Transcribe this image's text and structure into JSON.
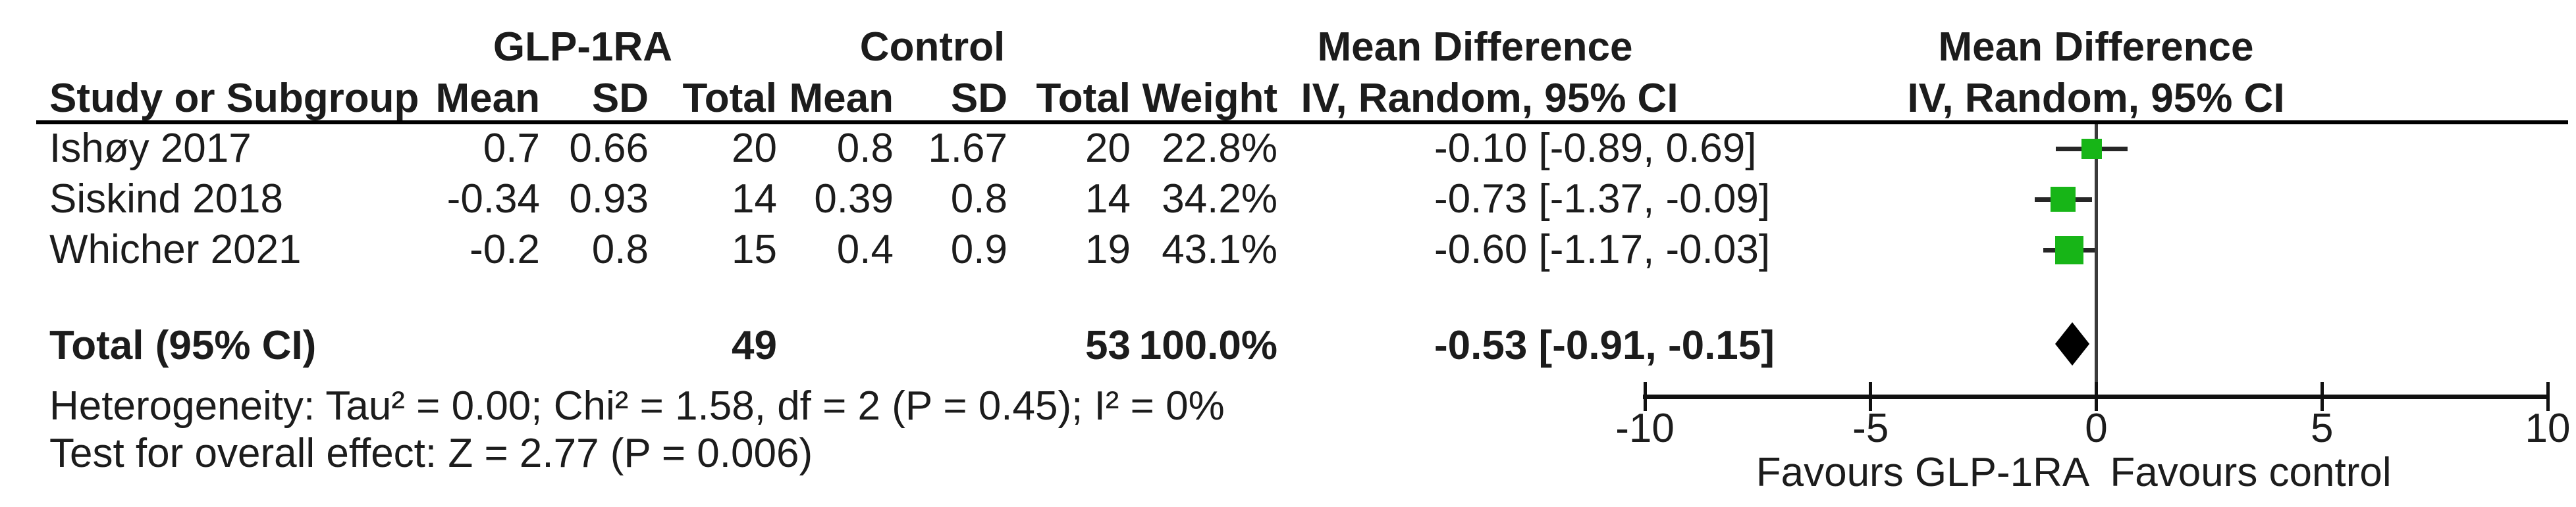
{
  "table": {
    "group_headers": {
      "treatment": "GLP-1RA",
      "control": "Control",
      "effect_stats": "Mean Difference",
      "effect_plot": "Mean Difference"
    },
    "column_headers": {
      "study": "Study or Subgroup",
      "t_mean": "Mean",
      "t_sd": "SD",
      "t_total": "Total",
      "c_mean": "Mean",
      "c_sd": "SD",
      "c_total": "Total",
      "weight": "Weight",
      "effect_stats_sub": "IV, Random, 95% CI",
      "effect_plot_sub": "IV, Random, 95% CI"
    },
    "rows": [
      {
        "study": "Ishøy 2017",
        "t_mean": "0.7",
        "t_sd": "0.66",
        "t_total": "20",
        "c_mean": "0.8",
        "c_sd": "1.67",
        "c_total": "20",
        "weight": "22.8%",
        "md_ci": "-0.10 [-0.89, 0.69]"
      },
      {
        "study": "Siskind 2018",
        "t_mean": "-0.34",
        "t_sd": "0.93",
        "t_total": "14",
        "c_mean": "0.39",
        "c_sd": "0.8",
        "c_total": "14",
        "weight": "34.2%",
        "md_ci": "-0.73 [-1.37, -0.09]"
      },
      {
        "study": "Whicher 2021",
        "t_mean": "-0.2",
        "t_sd": "0.8",
        "t_total": "15",
        "c_mean": "0.4",
        "c_sd": "0.9",
        "c_total": "19",
        "weight": "43.1%",
        "md_ci": "-0.60 [-1.17, -0.03]"
      }
    ],
    "total_row": {
      "label": "Total (95% CI)",
      "t_total": "49",
      "c_total": "53",
      "weight": "100.0%",
      "md_ci": "-0.53 [-0.91, -0.15]"
    },
    "footnotes": {
      "heterogeneity": "Heterogeneity: Tau² = 0.00; Chi² = 1.58, df = 2 (P = 0.45); I² = 0%",
      "overall_effect": "Test for overall effect: Z = 2.77 (P = 0.006)"
    }
  },
  "plot": {
    "marker_color": "#17b517",
    "diamond_color": "#000000",
    "line_color": "#262626",
    "favours_left": "Favours GLP-1RA",
    "favours_right": "Favours control"
  },
  "chart_data": {
    "type": "forest",
    "effect_measure": "Mean Difference",
    "model": "IV, Random, 95% CI",
    "studies": [
      {
        "name": "Ishøy 2017",
        "treatment": {
          "mean": 0.7,
          "sd": 0.66,
          "total": 20
        },
        "control": {
          "mean": 0.8,
          "sd": 1.67,
          "total": 20
        },
        "weight_pct": 22.8,
        "md": -0.1,
        "ci": [
          -0.89,
          0.69
        ]
      },
      {
        "name": "Siskind 2018",
        "treatment": {
          "mean": -0.34,
          "sd": 0.93,
          "total": 14
        },
        "control": {
          "mean": 0.39,
          "sd": 0.8,
          "total": 14
        },
        "weight_pct": 34.2,
        "md": -0.73,
        "ci": [
          -1.37,
          -0.09
        ]
      },
      {
        "name": "Whicher 2021",
        "treatment": {
          "mean": -0.2,
          "sd": 0.8,
          "total": 15
        },
        "control": {
          "mean": 0.4,
          "sd": 0.9,
          "total": 19
        },
        "weight_pct": 43.1,
        "md": -0.6,
        "ci": [
          -1.17,
          -0.03
        ]
      }
    ],
    "total": {
      "treatment_total": 49,
      "control_total": 53,
      "weight_pct": 100.0,
      "md": -0.53,
      "ci": [
        -0.91,
        -0.15
      ]
    },
    "heterogeneity": {
      "tau2": 0.0,
      "chi2": 1.58,
      "df": 2,
      "p": 0.45,
      "i2_pct": 0
    },
    "overall_effect": {
      "z": 2.77,
      "p": 0.006
    },
    "xlim": [
      -10,
      10
    ],
    "ticks": [
      -10,
      -5,
      0,
      5,
      10
    ],
    "xlabel_left": "Favours GLP-1RA",
    "xlabel_right": "Favours control"
  }
}
